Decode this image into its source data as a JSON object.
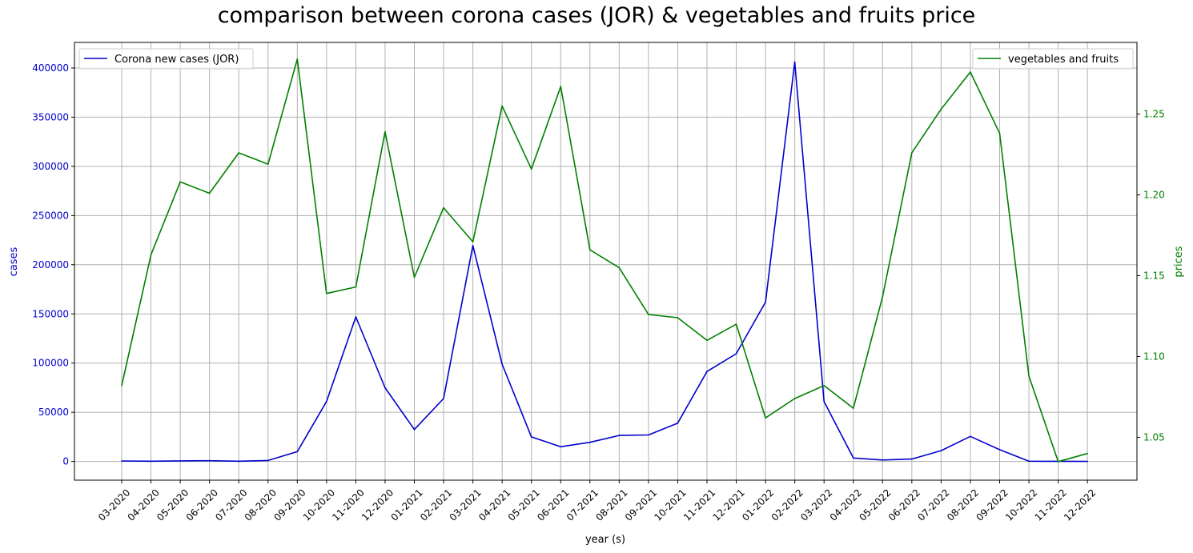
{
  "chart_data": {
    "type": "line",
    "title": "comparison between corona cases (JOR) & vegetables and fruits price",
    "xlabel": "year (s)",
    "ylabel_left": "cases",
    "ylabel_right": "prices",
    "left_axis_color": "#0000cd",
    "right_axis_color": "#008000",
    "grid": true,
    "categories": [
      "03-2020",
      "04-2020",
      "05-2020",
      "06-2020",
      "07-2020",
      "08-2020",
      "09-2020",
      "10-2020",
      "11-2020",
      "12-2020",
      "01-2021",
      "02-2021",
      "03-2021",
      "04-2021",
      "05-2021",
      "06-2021",
      "07-2021",
      "08-2021",
      "09-2021",
      "10-2021",
      "11-2021",
      "12-2021",
      "01-2022",
      "02-2022",
      "03-2022",
      "04-2022",
      "05-2022",
      "06-2022",
      "07-2022",
      "08-2022",
      "09-2022",
      "10-2022",
      "11-2022",
      "12-2022"
    ],
    "left_axis": {
      "ylim": [
        -19000,
        426000
      ],
      "ticks": [
        0,
        50000,
        100000,
        150000,
        200000,
        250000,
        300000,
        350000,
        400000
      ],
      "tick_labels": [
        "0",
        "50000",
        "100000",
        "150000",
        "200000",
        "250000",
        "300000",
        "350000",
        "400000"
      ]
    },
    "right_axis": {
      "ylim": [
        1.0235,
        1.2943
      ],
      "ticks": [
        1.05,
        1.1,
        1.15,
        1.2,
        1.25
      ],
      "tick_labels": [
        "1.05",
        "1.10",
        "1.15",
        "1.20",
        "1.25"
      ]
    },
    "series": [
      {
        "name": "Corona new cases (JOR)",
        "axis": "left",
        "color": "#0000cd",
        "values": [
          500,
          300,
          600,
          800,
          300,
          1000,
          10000,
          61000,
          147000,
          75000,
          32500,
          64000,
          219500,
          99000,
          25000,
          15000,
          19500,
          26500,
          27000,
          39000,
          91500,
          109500,
          162000,
          406000,
          61000,
          3500,
          1500,
          2500,
          11000,
          25500,
          12000,
          300,
          200,
          100
        ]
      },
      {
        "name": "vegetables and fruits",
        "axis": "right",
        "color": "#008000",
        "values": [
          1.082,
          1.163,
          1.208,
          1.201,
          1.226,
          1.219,
          1.284,
          1.139,
          1.143,
          1.239,
          1.149,
          1.192,
          1.171,
          1.255,
          1.216,
          1.267,
          1.166,
          1.155,
          1.126,
          1.124,
          1.11,
          1.12,
          1.062,
          1.074,
          1.082,
          1.068,
          1.137,
          1.226,
          1.253,
          1.276,
          1.238,
          1.088,
          1.035,
          1.04
        ]
      }
    ],
    "legend_left_position": "upper-left",
    "legend_right_position": "upper-right"
  }
}
